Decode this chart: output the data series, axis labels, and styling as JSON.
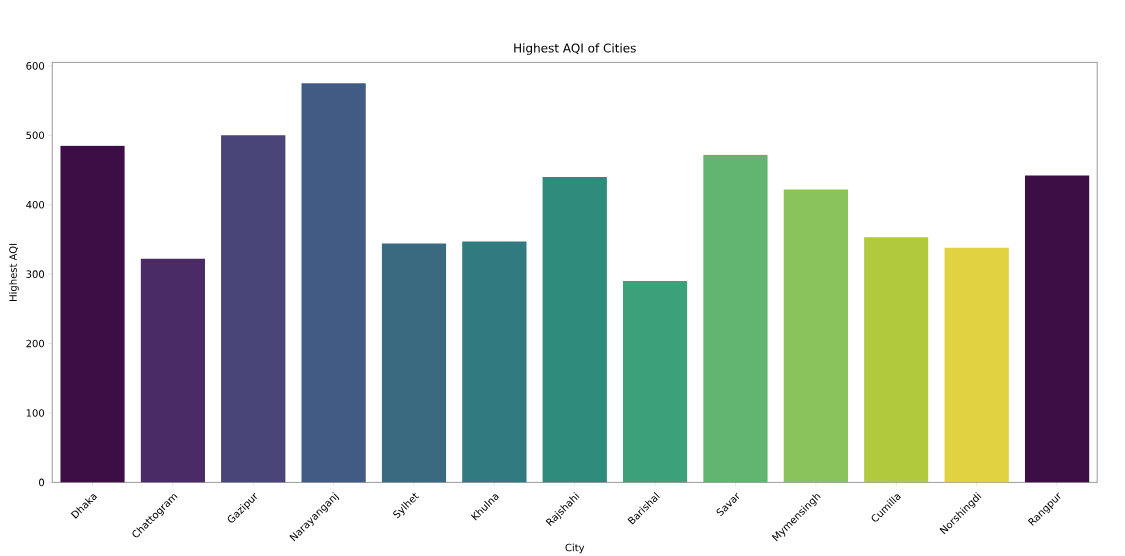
{
  "chart_data": {
    "type": "bar",
    "title": "Highest AQI of Cities",
    "xlabel": "City",
    "ylabel": "Highest AQI",
    "categories": [
      "Dhaka",
      "Chattogram",
      "Gazipur",
      "Narayanganj",
      "Sylhet",
      "Khulna",
      "Rajshahi",
      "Barishal",
      "Savar",
      "Mymensingh",
      "Cumilla",
      "Norshingdi",
      "Rangpur"
    ],
    "values": [
      485,
      322,
      500,
      575,
      344,
      347,
      440,
      290,
      472,
      422,
      353,
      338,
      442
    ],
    "colors": [
      "#3d0d46",
      "#4a2b66",
      "#494579",
      "#425b84",
      "#396a80",
      "#317a7f",
      "#2f8b7c",
      "#3ca078",
      "#61b570",
      "#8ac35c",
      "#b1c93c",
      "#e0d241",
      "#3d0d46"
    ],
    "ylim": [
      0,
      605
    ],
    "yticks": [
      0,
      100,
      200,
      300,
      400,
      500,
      600
    ],
    "grid": false
  }
}
